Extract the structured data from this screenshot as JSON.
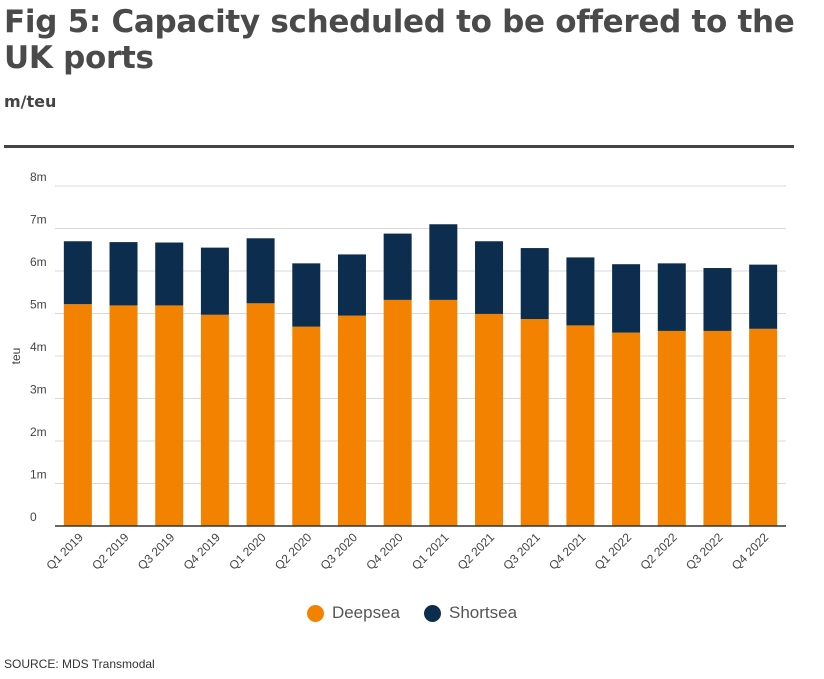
{
  "title": "Fig 5: Capacity scheduled to be offered to the UK ports",
  "subtitle": "m/teu",
  "source": "SOURCE: MDS Transmodal",
  "colors": {
    "deepsea": "#f28200",
    "shortsea": "#0d2d4e",
    "grid": "#d9d9d9",
    "axis": "#333333"
  },
  "chart_data": {
    "type": "bar",
    "stacked": true,
    "categories": [
      "Q1 2019",
      "Q2 2019",
      "Q3 2019",
      "Q4 2019",
      "Q1 2020",
      "Q2 2020",
      "Q3 2020",
      "Q4 2020",
      "Q1 2021",
      "Q2 2021",
      "Q3 2021",
      "Q4 2021",
      "Q1 2022",
      "Q2 2022",
      "Q3 2022",
      "Q4 2022"
    ],
    "series": [
      {
        "name": "Deepsea",
        "values": [
          5.22,
          5.19,
          5.19,
          4.97,
          5.24,
          4.69,
          4.95,
          5.32,
          5.32,
          4.99,
          4.87,
          4.72,
          4.55,
          4.59,
          4.59,
          4.64
        ]
      },
      {
        "name": "Shortsea",
        "values": [
          1.48,
          1.49,
          1.48,
          1.58,
          1.53,
          1.49,
          1.44,
          1.56,
          1.78,
          1.71,
          1.67,
          1.6,
          1.61,
          1.59,
          1.48,
          1.51
        ]
      }
    ],
    "ylabel": "teu",
    "ylim": [
      0,
      8
    ],
    "yticks": [
      "0",
      "1m",
      "2m",
      "3m",
      "4m",
      "5m",
      "6m",
      "7m",
      "8m"
    ],
    "grid": true,
    "legend_position": "bottom"
  }
}
